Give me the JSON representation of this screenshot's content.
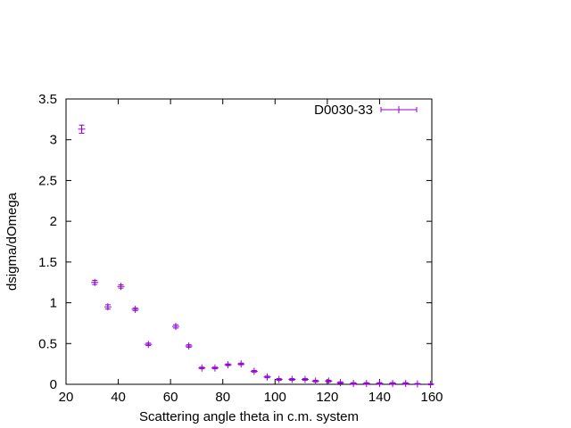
{
  "chart_data": {
    "type": "scatter",
    "xlabel": "Scattering angle theta in c.m. system",
    "ylabel": "dsigma/dOmega",
    "xlim": [
      20,
      160
    ],
    "ylim": [
      0,
      3.5
    ],
    "x_ticks": [
      "20",
      "40",
      "60",
      "80",
      "100",
      "120",
      "140",
      "160"
    ],
    "y_ticks": [
      "0",
      "0.5",
      "1",
      "1.5",
      "2",
      "2.5",
      "3",
      "3.5"
    ],
    "grid": false,
    "legend_position": "top-right",
    "series": [
      {
        "name": "D0030-33",
        "color": "#9400d3",
        "marker": "plus",
        "error_bars": "y",
        "points": [
          {
            "x": 26,
            "y": 3.13,
            "err": 0.05
          },
          {
            "x": 31,
            "y": 1.25,
            "err": 0.025
          },
          {
            "x": 36,
            "y": 0.95,
            "err": 0.025
          },
          {
            "x": 41,
            "y": 1.2,
            "err": 0.02
          },
          {
            "x": 46.5,
            "y": 0.92,
            "err": 0.015
          },
          {
            "x": 51.5,
            "y": 0.49,
            "err": 0.015
          },
          {
            "x": 62,
            "y": 0.71,
            "err": 0.02
          },
          {
            "x": 67,
            "y": 0.47,
            "err": 0.015
          },
          {
            "x": 72,
            "y": 0.2,
            "err": 0.01
          },
          {
            "x": 77,
            "y": 0.2,
            "err": 0.01
          },
          {
            "x": 82,
            "y": 0.24,
            "err": 0.01
          },
          {
            "x": 87,
            "y": 0.25,
            "err": 0.01
          },
          {
            "x": 92,
            "y": 0.16,
            "err": 0.01
          },
          {
            "x": 97,
            "y": 0.09,
            "err": 0.01
          },
          {
            "x": 101.5,
            "y": 0.06,
            "err": 0.01
          },
          {
            "x": 106.5,
            "y": 0.06,
            "err": 0.01
          },
          {
            "x": 111.5,
            "y": 0.06,
            "err": 0.01
          },
          {
            "x": 115.5,
            "y": 0.04,
            "err": 0.01
          },
          {
            "x": 120.5,
            "y": 0.04,
            "err": 0.01
          },
          {
            "x": 125,
            "y": 0.02,
            "err": 0.01
          },
          {
            "x": 130,
            "y": 0.01,
            "err": 0.01
          },
          {
            "x": 135,
            "y": 0.01,
            "err": 0.01
          },
          {
            "x": 140,
            "y": 0.01,
            "err": 0.01
          },
          {
            "x": 145,
            "y": 0.01,
            "err": 0.01
          },
          {
            "x": 150,
            "y": 0.01,
            "err": 0.01
          },
          {
            "x": 154.5,
            "y": 0.005,
            "err": 0.005
          },
          {
            "x": 159.5,
            "y": 0.0,
            "err": 0.005
          }
        ]
      }
    ]
  }
}
